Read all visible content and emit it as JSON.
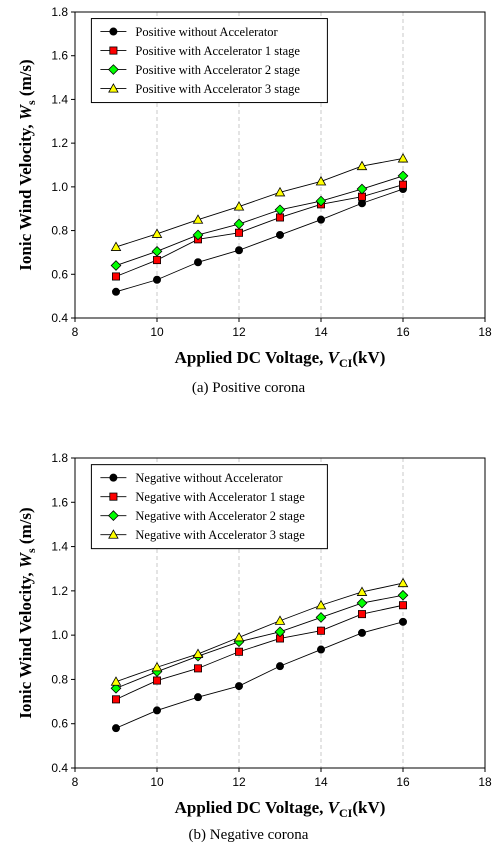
{
  "chart_data": [
    {
      "type": "line",
      "xlabel": {
        "main": "Applied DC Voltage, ",
        "var": "V",
        "sub": "CI",
        "unit": "(kV)"
      },
      "ylabel": {
        "main": "Ionic Wind Velocity, ",
        "var": "W",
        "sub": "s",
        "unit": " (m/s)"
      },
      "xlim": [
        8,
        18
      ],
      "ylim": [
        0.4,
        1.8
      ],
      "xticks": [
        8,
        10,
        12,
        14,
        16,
        18
      ],
      "yticks": [
        0.4,
        0.6,
        0.8,
        1.0,
        1.2,
        1.4,
        1.6,
        1.8
      ],
      "grid": "vertical dashed",
      "legend": "top-left",
      "x": [
        9,
        10,
        11,
        12,
        13,
        14,
        15,
        16
      ],
      "series": [
        {
          "name": "Positive  without Accelerator",
          "marker": "circle",
          "color": "#000000",
          "values": [
            0.52,
            0.575,
            0.655,
            0.71,
            0.78,
            0.85,
            0.925,
            0.99
          ]
        },
        {
          "name": "Positive  with Accelerator 1 stage",
          "marker": "square",
          "color": "#ff0000",
          "values": [
            0.59,
            0.665,
            0.76,
            0.79,
            0.86,
            0.92,
            0.955,
            1.01
          ]
        },
        {
          "name": "Positive  with Accelerator 2 stage",
          "marker": "diamond",
          "color": "#00ff00",
          "values": [
            0.64,
            0.705,
            0.78,
            0.83,
            0.895,
            0.935,
            0.99,
            1.05
          ]
        },
        {
          "name": "Positive  with Accelerator 3 stage",
          "marker": "triangle",
          "color": "#ffff00",
          "values": [
            0.725,
            0.785,
            0.85,
            0.91,
            0.975,
            1.025,
            1.095,
            1.13
          ]
        }
      ]
    },
    {
      "type": "line",
      "xlabel": {
        "main": "Applied DC Voltage, ",
        "var": "V",
        "sub": "CI",
        "unit": "(kV)"
      },
      "ylabel": {
        "main": "Ionic Wind Velocity, ",
        "var": "W",
        "sub": "s",
        "unit": " (m/s)"
      },
      "xlim": [
        8,
        18
      ],
      "ylim": [
        0.4,
        1.8
      ],
      "xticks": [
        8,
        10,
        12,
        14,
        16,
        18
      ],
      "yticks": [
        0.4,
        0.6,
        0.8,
        1.0,
        1.2,
        1.4,
        1.6,
        1.8
      ],
      "grid": "vertical dashed",
      "legend": "top-left",
      "x": [
        9,
        10,
        11,
        12,
        13,
        14,
        15,
        16
      ],
      "series": [
        {
          "name": "Negative  without Accelerator",
          "marker": "circle",
          "color": "#000000",
          "values": [
            0.58,
            0.66,
            0.72,
            0.77,
            0.86,
            0.935,
            1.01,
            1.06
          ]
        },
        {
          "name": "Negative  with Accelerator 1 stage",
          "marker": "square",
          "color": "#ff0000",
          "values": [
            0.71,
            0.795,
            0.85,
            0.925,
            0.985,
            1.02,
            1.095,
            1.135
          ]
        },
        {
          "name": "Negative  with Accelerator 2 stage",
          "marker": "diamond",
          "color": "#00ff00",
          "values": [
            0.76,
            0.835,
            0.905,
            0.97,
            1.015,
            1.08,
            1.145,
            1.18
          ]
        },
        {
          "name": "Negative  with Accelerator 3 stage",
          "marker": "triangle",
          "color": "#ffff00",
          "values": [
            0.79,
            0.855,
            0.915,
            0.99,
            1.065,
            1.135,
            1.195,
            1.235
          ]
        }
      ]
    }
  ],
  "captions": {
    "a": "(a)  Positive  corona",
    "b": "(b)  Negative  corona"
  }
}
